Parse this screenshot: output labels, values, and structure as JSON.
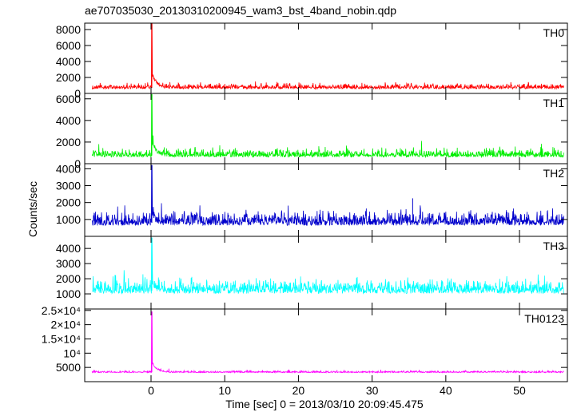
{
  "chart_data": {
    "type": "line",
    "title": "ae707035030_20130310200945_wam3_bst_4band_nobin.qdp",
    "xlabel": "Time [sec] 0 = 2013/03/10 20:09:45.475",
    "ylabel": "Counts/sec",
    "xlim": [
      -9,
      56.5
    ],
    "x_ticks": [
      0,
      10,
      20,
      30,
      40,
      50
    ],
    "x_tick_labels": [
      "0",
      "10",
      "20",
      "30",
      "40",
      "50"
    ],
    "x_data_range": [
      -8,
      56
    ],
    "grid": false,
    "panels": [
      {
        "name": "TH0",
        "color": "#ff0000",
        "ylim": [
          0,
          8800
        ],
        "y_ticks": [
          0,
          2000,
          4000,
          6000,
          8000
        ],
        "y_tick_labels": [
          "0",
          "2000",
          "4000",
          "6000",
          "8000"
        ],
        "background": 700,
        "noise": 350,
        "peak_time": 0.1,
        "peak": 8800,
        "decay_level": 2500,
        "decay_time": 0.6,
        "spikes": []
      },
      {
        "name": "TH1",
        "color": "#00ee00",
        "ylim": [
          0,
          6500
        ],
        "y_ticks": [
          0,
          2000,
          4000,
          6000
        ],
        "y_tick_labels": [
          "0",
          "2000",
          "4000",
          "6000"
        ],
        "background": 750,
        "noise": 400,
        "peak_time": 0.1,
        "peak": 6400,
        "decay_level": 2000,
        "decay_time": 0.6,
        "spikes": []
      },
      {
        "name": "TH2",
        "color": "#0000cc",
        "ylim": [
          0,
          4300
        ],
        "y_ticks": [
          1000,
          2000,
          3000,
          4000
        ],
        "y_tick_labels": [
          "1000",
          "2000",
          "3000",
          "4000"
        ],
        "background": 800,
        "noise": 450,
        "peak_time": 0.1,
        "peak": 4200,
        "decay_level": 1500,
        "decay_time": 0.4,
        "spikes": [
          {
            "x": 35.5,
            "y": 2250
          }
        ]
      },
      {
        "name": "TH3",
        "color": "#00ffff",
        "ylim": [
          0,
          4800
        ],
        "y_ticks": [
          1000,
          2000,
          3000,
          4000
        ],
        "y_tick_labels": [
          "1000",
          "2000",
          "3000",
          "4000"
        ],
        "background": 1200,
        "noise": 500,
        "peak_time": 0.1,
        "peak": 4700,
        "decay_level": 1900,
        "decay_time": 0.5,
        "spikes": []
      },
      {
        "name": "TH0123",
        "color": "#ff00ff",
        "ylim": [
          0,
          25500
        ],
        "y_ticks": [
          5000,
          10000,
          15000,
          20000,
          25000
        ],
        "y_tick_labels": [
          "5000",
          "10⁴",
          "1.5×10⁴",
          "2×10⁴",
          "2.5×10⁴"
        ],
        "background": 3300,
        "noise": 350,
        "peak_time": 0.1,
        "peak": 24500,
        "decay_level": 7000,
        "decay_time": 0.6,
        "spikes": []
      }
    ]
  }
}
